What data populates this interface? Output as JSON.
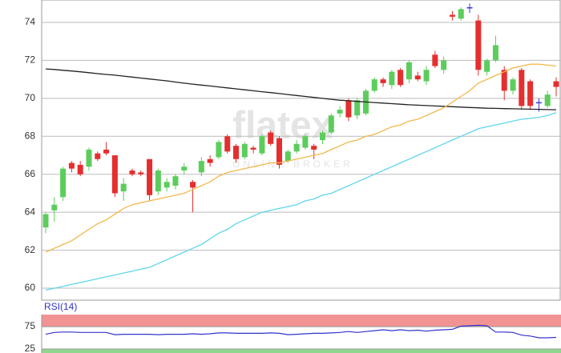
{
  "chart_data": [
    {
      "type": "candlestick",
      "watermark": "flatex",
      "watermark_subtitle": "ONLINE BROKER",
      "ylim": [
        59.37,
        75.18
      ],
      "yticks": [
        60,
        62,
        64,
        66,
        68,
        70,
        72,
        74
      ],
      "grid": true,
      "up_color": "#5ccd5c",
      "down_color": "#e52e2e",
      "flat_color": "#3a3adf",
      "open": [
        63.2,
        64.1,
        64.8,
        66.6,
        66.5,
        66.4,
        67.1,
        67.3,
        67.0,
        65.1,
        66.2,
        66.1,
        66.8,
        65.1,
        65.3,
        65.4,
        66.2,
        65.6,
        66.1,
        66.8,
        66.9,
        68.0,
        67.5,
        66.9,
        67.4,
        67.1,
        68.2,
        67.9,
        66.7,
        67.2,
        67.4,
        67.5,
        67.8,
        68.2,
        69.2,
        69.9,
        69.1,
        69.2,
        70.4,
        71.0,
        70.7,
        71.5,
        71.0,
        71.2,
        70.9,
        72.3,
        71.5,
        74.4,
        74.2,
        74.8,
        74.1,
        71.4,
        72.0,
        71.5,
        70.4,
        71.5,
        70.9,
        69.8,
        69.6,
        70.9
      ],
      "close": [
        63.9,
        64.4,
        66.3,
        66.3,
        66.0,
        67.3,
        66.8,
        67.1,
        65.0,
        65.5,
        66.0,
        66.0,
        64.9,
        66.2,
        65.6,
        65.9,
        66.4,
        65.3,
        66.7,
        66.6,
        67.7,
        67.2,
        66.8,
        67.6,
        67.3,
        68.0,
        67.6,
        66.5,
        67.2,
        67.6,
        68.0,
        67.3,
        68.2,
        69.1,
        69.4,
        69.0,
        69.9,
        70.4,
        71.0,
        70.8,
        71.4,
        70.7,
        71.9,
        71.0,
        71.5,
        71.7,
        72.0,
        74.3,
        74.7,
        74.8,
        71.5,
        72.0,
        72.8,
        70.4,
        71.0,
        69.6,
        69.6,
        69.8,
        70.2,
        70.6
      ],
      "high": [
        64.0,
        64.8,
        66.4,
        66.7,
        66.7,
        67.4,
        67.2,
        67.7,
        67.0,
        65.8,
        66.3,
        66.2,
        66.8,
        66.3,
        65.8,
        66.0,
        66.6,
        65.7,
        66.9,
        67.0,
        67.8,
        68.1,
        67.6,
        67.7,
        67.5,
        68.1,
        68.3,
        68.0,
        67.3,
        67.8,
        68.1,
        67.6,
        68.3,
        69.2,
        69.6,
        70.0,
        70.0,
        70.5,
        71.1,
        71.1,
        71.5,
        71.6,
        72.0,
        71.4,
        71.7,
        72.5,
        72.2,
        74.6,
        74.8,
        75.0,
        74.4,
        72.1,
        73.3,
        71.7,
        71.1,
        71.6,
        71.0,
        70.0,
        70.4,
        71.1
      ],
      "low": [
        62.9,
        63.5,
        64.6,
        66.1,
        65.9,
        66.2,
        66.7,
        67.0,
        64.8,
        64.6,
        65.9,
        65.9,
        64.6,
        64.9,
        65.1,
        65.2,
        66.0,
        64.0,
        65.9,
        66.4,
        66.8,
        67.1,
        66.6,
        66.8,
        67.1,
        67.0,
        67.5,
        66.3,
        66.6,
        67.1,
        67.3,
        66.8,
        67.6,
        68.1,
        69.0,
        68.8,
        68.9,
        69.1,
        70.3,
        70.6,
        70.5,
        70.6,
        70.8,
        70.9,
        70.7,
        71.6,
        71.3,
        74.1,
        74.1,
        74.5,
        71.2,
        71.2,
        71.9,
        69.9,
        70.2,
        69.4,
        69.4,
        69.3,
        69.5,
        70.1
      ],
      "lines": [
        {
          "color": "#222222",
          "values": [
            71.55,
            71.52,
            71.48,
            71.44,
            71.4,
            71.35,
            71.3,
            71.26,
            71.22,
            71.17,
            71.12,
            71.07,
            71.02,
            70.97,
            70.92,
            70.86,
            70.8,
            70.75,
            70.7,
            70.65,
            70.6,
            70.55,
            70.5,
            70.45,
            70.4,
            70.35,
            70.3,
            70.25,
            70.2,
            70.15,
            70.1,
            70.05,
            70.0,
            69.95,
            69.9,
            69.87,
            69.84,
            69.81,
            69.78,
            69.75,
            69.72,
            69.69,
            69.66,
            69.64,
            69.62,
            69.6,
            69.58,
            69.56,
            69.54,
            69.52,
            69.5,
            69.48,
            69.47,
            69.46,
            69.45,
            69.44,
            69.43,
            69.42,
            69.41,
            69.4
          ]
        },
        {
          "color": "#f2b84b",
          "values": [
            61.9,
            62.1,
            62.3,
            62.5,
            62.8,
            63.1,
            63.4,
            63.6,
            63.9,
            64.2,
            64.4,
            64.5,
            64.6,
            64.7,
            64.8,
            64.9,
            65.0,
            65.2,
            65.4,
            65.6,
            65.9,
            66.1,
            66.2,
            66.3,
            66.4,
            66.5,
            66.6,
            66.6,
            66.7,
            66.8,
            66.9,
            67.0,
            67.1,
            67.3,
            67.5,
            67.7,
            67.8,
            68.0,
            68.1,
            68.3,
            68.5,
            68.6,
            68.8,
            68.9,
            69.1,
            69.3,
            69.5,
            69.8,
            70.1,
            70.4,
            70.8,
            71.0,
            71.2,
            71.4,
            71.6,
            71.7,
            71.8,
            71.8,
            71.75,
            71.7
          ]
        },
        {
          "color": "#5fd6ee",
          "values": [
            59.9,
            60.0,
            60.1,
            60.2,
            60.3,
            60.4,
            60.5,
            60.6,
            60.7,
            60.8,
            60.9,
            61.0,
            61.1,
            61.3,
            61.5,
            61.7,
            61.9,
            62.1,
            62.3,
            62.6,
            62.9,
            63.1,
            63.4,
            63.6,
            63.8,
            64.0,
            64.1,
            64.2,
            64.3,
            64.4,
            64.6,
            64.7,
            64.9,
            65.0,
            65.2,
            65.4,
            65.6,
            65.8,
            66.0,
            66.2,
            66.4,
            66.6,
            66.8,
            67.0,
            67.2,
            67.4,
            67.6,
            67.8,
            68.0,
            68.2,
            68.4,
            68.5,
            68.6,
            68.7,
            68.8,
            68.9,
            68.95,
            69.0,
            69.1,
            69.25
          ]
        }
      ]
    },
    {
      "type": "line",
      "title": "RSI(14)",
      "ylim": [
        16,
        102
      ],
      "yticks": [
        75,
        25
      ],
      "color": "#3333cc",
      "upper_band_color": "#f08080",
      "lower_band_color": "#7ccf7c",
      "values": [
        58,
        62,
        63,
        63,
        62,
        62,
        62,
        62,
        57,
        58,
        58,
        58,
        58,
        57,
        58,
        58,
        58,
        59,
        58,
        59,
        61,
        61,
        60,
        60,
        60,
        60,
        61,
        60,
        57,
        58,
        59,
        60,
        60,
        61,
        62,
        64,
        62,
        64,
        66,
        68,
        66,
        68,
        66,
        67,
        65,
        67,
        68,
        69,
        76,
        77,
        78,
        77,
        63,
        63,
        62,
        56,
        54,
        50,
        50,
        51
      ]
    }
  ]
}
